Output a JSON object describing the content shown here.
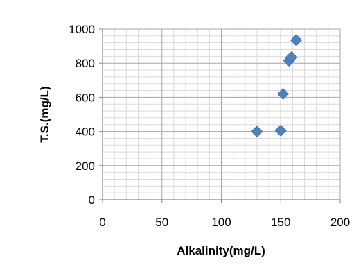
{
  "chart_data": {
    "type": "scatter",
    "title": "",
    "xlabel": "Alkalinity(mg/L)",
    "ylabel": "T.S.(mg/L)",
    "xlim": [
      0,
      200
    ],
    "ylim": [
      0,
      1000
    ],
    "x_ticks": [
      0,
      50,
      100,
      150,
      200
    ],
    "y_ticks": [
      0,
      200,
      400,
      600,
      800,
      1000
    ],
    "minor_x_step": 10,
    "minor_y_step": 40,
    "grid": true,
    "legend": "none",
    "marker": "diamond",
    "marker_color": "#4f81bd",
    "series": [
      {
        "points": [
          {
            "x": 130,
            "y": 400
          },
          {
            "x": 150,
            "y": 405
          },
          {
            "x": 152,
            "y": 620
          },
          {
            "x": 157,
            "y": 815
          },
          {
            "x": 159,
            "y": 835
          },
          {
            "x": 163,
            "y": 935
          }
        ]
      }
    ]
  }
}
